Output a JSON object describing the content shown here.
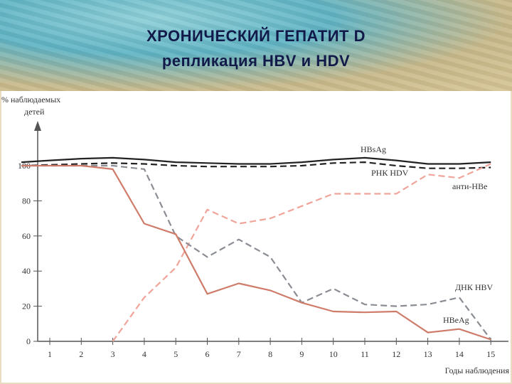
{
  "slide": {
    "title_line1": "ХРОНИЧЕСКИЙ ГЕПАТИТ D",
    "title_line2": "репликация HBV и HDV"
  },
  "chart_data": {
    "type": "line",
    "ylabel_line1": "% наблюдаемых",
    "ylabel_line2": "детей",
    "xlabel": "Годы наблюдения",
    "x": [
      1,
      2,
      3,
      4,
      5,
      6,
      7,
      8,
      9,
      10,
      11,
      12,
      13,
      14,
      15
    ],
    "y_ticks": [
      0,
      20,
      40,
      60,
      80,
      100
    ],
    "xlim": [
      0.2,
      15.3
    ],
    "ylim": [
      0,
      125
    ],
    "series": [
      {
        "name": "HBsAg",
        "style": "solid",
        "color": "#222222",
        "points": [
          [
            0.1,
            102
          ],
          [
            1,
            103
          ],
          [
            2,
            104
          ],
          [
            3,
            104.5
          ],
          [
            4,
            103.5
          ],
          [
            5,
            102
          ],
          [
            6,
            101.5
          ],
          [
            7,
            101
          ],
          [
            8,
            101
          ],
          [
            9,
            102
          ],
          [
            10,
            103.5
          ],
          [
            11,
            104.5
          ],
          [
            12,
            103
          ],
          [
            13,
            101
          ],
          [
            14,
            101
          ],
          [
            15,
            102
          ]
        ]
      },
      {
        "name": "РНК HDV",
        "style": "dashed",
        "color": "#222222",
        "points": [
          [
            0.1,
            100
          ],
          [
            1,
            100.5
          ],
          [
            2,
            101
          ],
          [
            3,
            101.5
          ],
          [
            4,
            101
          ],
          [
            5,
            100
          ],
          [
            6,
            99.5
          ],
          [
            7,
            99.5
          ],
          [
            8,
            99.5
          ],
          [
            9,
            100
          ],
          [
            10,
            101.5
          ],
          [
            11,
            102
          ],
          [
            12,
            100
          ],
          [
            13,
            98.5
          ],
          [
            14,
            98.5
          ],
          [
            15,
            99
          ]
        ]
      },
      {
        "name": "анти-HBe",
        "style": "dashed",
        "color": "#f0a49a",
        "points": [
          [
            3,
            0
          ],
          [
            4,
            25
          ],
          [
            5,
            42
          ],
          [
            6,
            75
          ],
          [
            7,
            67
          ],
          [
            8,
            70
          ],
          [
            9,
            77
          ],
          [
            10,
            84
          ],
          [
            11,
            84
          ],
          [
            12,
            84
          ],
          [
            13,
            95
          ],
          [
            14,
            93
          ],
          [
            15,
            101
          ]
        ]
      },
      {
        "name": "ДНК HBV",
        "style": "dashed",
        "color": "#8a8e94",
        "points": [
          [
            0.1,
            100
          ],
          [
            2,
            100
          ],
          [
            3,
            100
          ],
          [
            4,
            98
          ],
          [
            5,
            60
          ],
          [
            6,
            48
          ],
          [
            7,
            58
          ],
          [
            8,
            48
          ],
          [
            9,
            22
          ],
          [
            10,
            30
          ],
          [
            11,
            21
          ],
          [
            12,
            20
          ],
          [
            13,
            21
          ],
          [
            14,
            25
          ],
          [
            15,
            1
          ]
        ]
      },
      {
        "name": "HBeAg",
        "style": "solid",
        "color": "#cf7b69",
        "points": [
          [
            0.1,
            100
          ],
          [
            2,
            100
          ],
          [
            3,
            98
          ],
          [
            4,
            67
          ],
          [
            5,
            61
          ],
          [
            6,
            27
          ],
          [
            7,
            33
          ],
          [
            8,
            29
          ],
          [
            9,
            22
          ],
          [
            10,
            17
          ],
          [
            11,
            16.5
          ],
          [
            12,
            17
          ],
          [
            13,
            5
          ],
          [
            14,
            7
          ],
          [
            15,
            1
          ]
        ]
      }
    ],
    "colors": {
      "axis": "#555555"
    }
  }
}
